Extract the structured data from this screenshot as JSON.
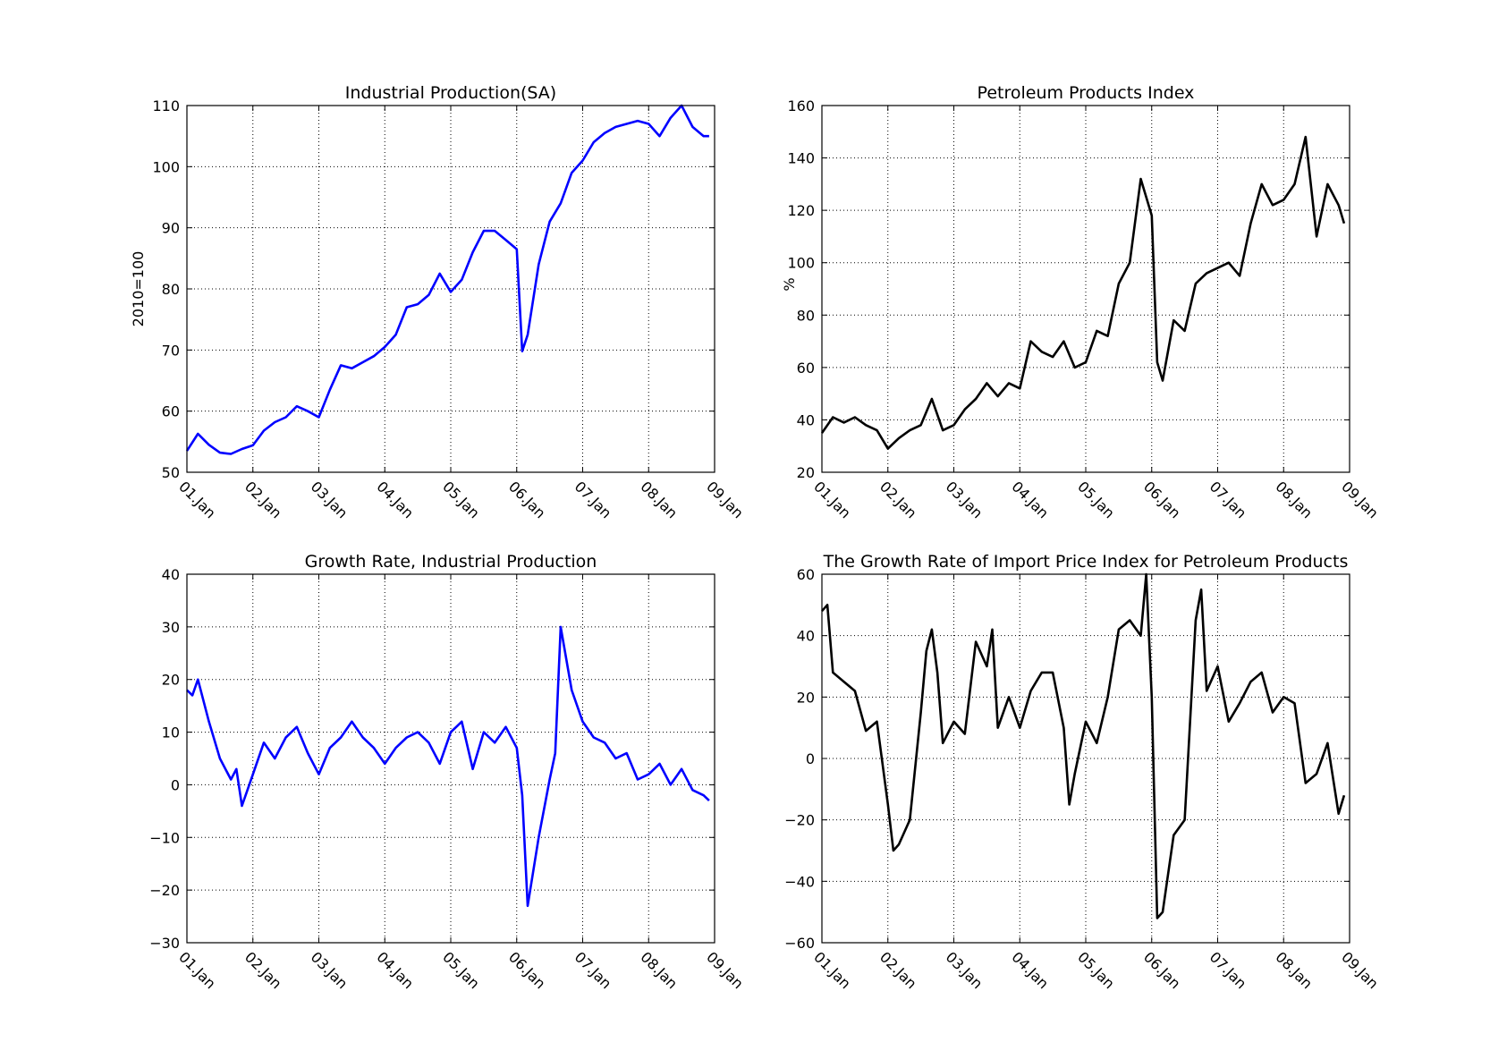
{
  "chart_data": [
    {
      "type": "line",
      "title": "Industrial Production(SA)",
      "xlabel": "",
      "ylabel": "2010=100",
      "ylim": [
        50,
        110
      ],
      "yticks": [
        50,
        60,
        70,
        80,
        90,
        100,
        110
      ],
      "xticks": [
        "01.Jan",
        "02.Jan",
        "03.Jan",
        "04.Jan",
        "05.Jan",
        "06.Jan",
        "07.Jan",
        "08.Jan",
        "09.Jan"
      ],
      "xlim": [
        "2001-01",
        "2009-01"
      ],
      "grid": true,
      "color": "#0000ff",
      "series": [
        {
          "x": [
            "2001-01",
            "2001-03",
            "2001-05",
            "2001-07",
            "2001-09",
            "2001-11",
            "2002-01",
            "2002-03",
            "2002-05",
            "2002-07",
            "2002-09",
            "2002-11",
            "2003-01",
            "2003-03",
            "2003-05",
            "2003-07",
            "2003-09",
            "2003-11",
            "2004-01",
            "2004-03",
            "2004-05",
            "2004-07",
            "2004-09",
            "2004-11",
            "2005-01",
            "2005-03",
            "2005-05",
            "2005-07",
            "2005-09",
            "2005-11",
            "2006-01",
            "2006-02",
            "2006-03",
            "2006-05",
            "2006-07",
            "2006-09",
            "2006-11",
            "2007-01",
            "2007-03",
            "2007-05",
            "2007-07",
            "2007-09",
            "2007-11",
            "2008-01",
            "2008-03",
            "2008-05",
            "2008-07",
            "2008-09",
            "2008-11",
            "2008-12"
          ],
          "values": [
            53.5,
            56.3,
            54.5,
            53.2,
            53.0,
            53.8,
            54.4,
            56.8,
            58.2,
            59.0,
            60.8,
            60.0,
            59.0,
            63.5,
            67.5,
            67.0,
            68.0,
            69.0,
            70.5,
            72.5,
            77.0,
            77.5,
            79.0,
            82.5,
            79.5,
            81.5,
            86.0,
            89.5,
            89.5,
            88.0,
            86.5,
            69.8,
            72.5,
            84.0,
            91.0,
            94.0,
            99.0,
            101.0,
            104.0,
            105.5,
            106.5,
            107.0,
            107.5,
            107.0,
            105.0,
            108.0,
            110.0,
            106.5,
            105.0,
            105.0
          ]
        }
      ]
    },
    {
      "type": "line",
      "title": "Petroleum Products Index",
      "xlabel": "",
      "ylabel": "%",
      "ylim": [
        20,
        160
      ],
      "yticks": [
        20,
        40,
        60,
        80,
        100,
        120,
        140,
        160
      ],
      "xticks": [
        "01.Jan",
        "02.Jan",
        "03.Jan",
        "04.Jan",
        "05.Jan",
        "06.Jan",
        "07.Jan",
        "08.Jan",
        "09.Jan"
      ],
      "xlim": [
        "2001-01",
        "2009-01"
      ],
      "grid": true,
      "color": "#000000",
      "series": [
        {
          "x": [
            "2001-01",
            "2001-03",
            "2001-05",
            "2001-07",
            "2001-09",
            "2001-11",
            "2002-01",
            "2002-03",
            "2002-05",
            "2002-07",
            "2002-09",
            "2002-11",
            "2003-01",
            "2003-03",
            "2003-05",
            "2003-07",
            "2003-09",
            "2003-11",
            "2004-01",
            "2004-03",
            "2004-05",
            "2004-07",
            "2004-09",
            "2004-11",
            "2005-01",
            "2005-03",
            "2005-05",
            "2005-07",
            "2005-09",
            "2005-11",
            "2006-01",
            "2006-02",
            "2006-03",
            "2006-05",
            "2006-07",
            "2006-09",
            "2006-11",
            "2007-01",
            "2007-03",
            "2007-05",
            "2007-07",
            "2007-09",
            "2007-11",
            "2008-01",
            "2008-03",
            "2008-05",
            "2008-07",
            "2008-09",
            "2008-11",
            "2008-12"
          ],
          "values": [
            35,
            41,
            39,
            41,
            38,
            36,
            29,
            33,
            36,
            38,
            48,
            36,
            38,
            44,
            48,
            54,
            49,
            54,
            52,
            70,
            66,
            64,
            70,
            60,
            62,
            74,
            72,
            92,
            100,
            132,
            118,
            62,
            55,
            78,
            74,
            92,
            96,
            98,
            100,
            95,
            115,
            130,
            122,
            124,
            130,
            148,
            110,
            130,
            122,
            115
          ]
        }
      ]
    },
    {
      "type": "line",
      "title": "Growth Rate, Industrial Production",
      "xlabel": "",
      "ylabel": "",
      "ylim": [
        -30,
        40
      ],
      "yticks": [
        -30,
        -20,
        -10,
        0,
        10,
        20,
        30,
        40
      ],
      "xticks": [
        "01.Jan",
        "02.Jan",
        "03.Jan",
        "04.Jan",
        "05.Jan",
        "06.Jan",
        "07.Jan",
        "08.Jan",
        "09.Jan"
      ],
      "xlim": [
        "2001-01",
        "2009-01"
      ],
      "grid": true,
      "color": "#0000ff",
      "series": [
        {
          "x": [
            "2001-01",
            "2001-02",
            "2001-03",
            "2001-05",
            "2001-07",
            "2001-09",
            "2001-10",
            "2001-11",
            "2002-01",
            "2002-03",
            "2002-05",
            "2002-07",
            "2002-09",
            "2002-11",
            "2003-01",
            "2003-03",
            "2003-05",
            "2003-07",
            "2003-09",
            "2003-11",
            "2004-01",
            "2004-03",
            "2004-05",
            "2004-07",
            "2004-09",
            "2004-11",
            "2005-01",
            "2005-03",
            "2005-05",
            "2005-07",
            "2005-09",
            "2005-11",
            "2006-01",
            "2006-02",
            "2006-03",
            "2006-05",
            "2006-07",
            "2006-08",
            "2006-09",
            "2006-11",
            "2007-01",
            "2007-03",
            "2007-05",
            "2007-07",
            "2007-09",
            "2007-11",
            "2008-01",
            "2008-03",
            "2008-05",
            "2008-07",
            "2008-09",
            "2008-11",
            "2008-12"
          ],
          "values": [
            18,
            17,
            20,
            12,
            5,
            1,
            3,
            -4,
            2,
            8,
            5,
            9,
            11,
            6,
            2,
            7,
            9,
            12,
            9,
            7,
            4,
            7,
            9,
            10,
            8,
            4,
            10,
            12,
            3,
            10,
            8,
            11,
            7,
            -2,
            -23,
            -10,
            1,
            6,
            30,
            18,
            12,
            9,
            8,
            5,
            6,
            1,
            2,
            4,
            0,
            3,
            -1,
            -2,
            -3
          ]
        }
      ]
    },
    {
      "type": "line",
      "title": "The Growth Rate of Import Price Index for Petroleum Products",
      "xlabel": "",
      "ylabel": "",
      "ylim": [
        -60,
        60
      ],
      "yticks": [
        -60,
        -40,
        -20,
        0,
        20,
        40,
        60
      ],
      "xticks": [
        "01.Jan",
        "02.Jan",
        "03.Jan",
        "04.Jan",
        "05.Jan",
        "06.Jan",
        "07.Jan",
        "08.Jan",
        "09.Jan"
      ],
      "xlim": [
        "2001-01",
        "2009-01"
      ],
      "grid": true,
      "color": "#000000",
      "series": [
        {
          "x": [
            "2001-01",
            "2001-02",
            "2001-03",
            "2001-05",
            "2001-07",
            "2001-09",
            "2001-11",
            "2002-01",
            "2002-02",
            "2002-03",
            "2002-05",
            "2002-07",
            "2002-08",
            "2002-09",
            "2002-10",
            "2002-11",
            "2003-01",
            "2003-03",
            "2003-05",
            "2003-07",
            "2003-08",
            "2003-09",
            "2003-11",
            "2004-01",
            "2004-03",
            "2004-05",
            "2004-07",
            "2004-09",
            "2004-10",
            "2004-11",
            "2005-01",
            "2005-03",
            "2005-05",
            "2005-07",
            "2005-09",
            "2005-11",
            "2005-12",
            "2006-01",
            "2006-02",
            "2006-03",
            "2006-05",
            "2006-07",
            "2006-09",
            "2006-10",
            "2006-11",
            "2007-01",
            "2007-03",
            "2007-05",
            "2007-07",
            "2007-09",
            "2007-11",
            "2008-01",
            "2008-03",
            "2008-05",
            "2008-07",
            "2008-09",
            "2008-11",
            "2008-12"
          ],
          "values": [
            48,
            50,
            28,
            25,
            22,
            9,
            12,
            -15,
            -30,
            -28,
            -20,
            15,
            35,
            42,
            28,
            5,
            12,
            8,
            38,
            30,
            42,
            10,
            20,
            10,
            22,
            28,
            28,
            10,
            -15,
            -5,
            12,
            5,
            20,
            42,
            45,
            40,
            60,
            20,
            -52,
            -50,
            -25,
            -20,
            45,
            55,
            22,
            30,
            12,
            18,
            25,
            28,
            15,
            20,
            18,
            -8,
            -5,
            5,
            -18,
            -12
          ]
        }
      ]
    }
  ]
}
